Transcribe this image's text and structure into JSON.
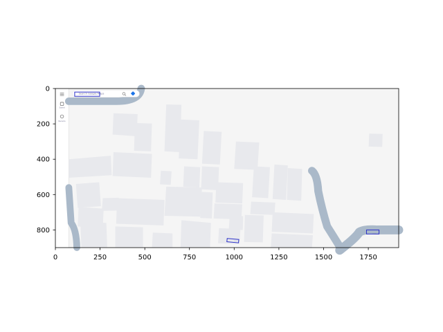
{
  "window": {
    "title": "",
    "width": 640,
    "height": 480
  },
  "axes": {
    "x_ticks": [
      "0",
      "250",
      "500",
      "750",
      "1000",
      "1250",
      "1500",
      "1750"
    ],
    "y_ticks": [
      "0",
      "200",
      "400",
      "600",
      "800"
    ],
    "x_range": [
      0,
      1920
    ],
    "y_range": [
      0,
      900
    ]
  },
  "map_ui": {
    "search_bar": {
      "placeholder": "Search Google Maps"
    },
    "left_rail": [
      {
        "name": "menu-icon",
        "label": ""
      },
      {
        "name": "saved-icon",
        "label": "Saved"
      },
      {
        "name": "recents-icon",
        "label": "Recents"
      }
    ],
    "search_icon": "search-icon",
    "directions_icon": "directions-icon"
  },
  "boxes": [
    {
      "name": "search-bar-box"
    },
    {
      "name": "building-label-box"
    },
    {
      "name": "road-label-box"
    }
  ],
  "colors": {
    "map_background": "#f5f5f5",
    "building": "#e8e9ed",
    "road": "#aab9c9",
    "highlight": "#2f34c9"
  }
}
